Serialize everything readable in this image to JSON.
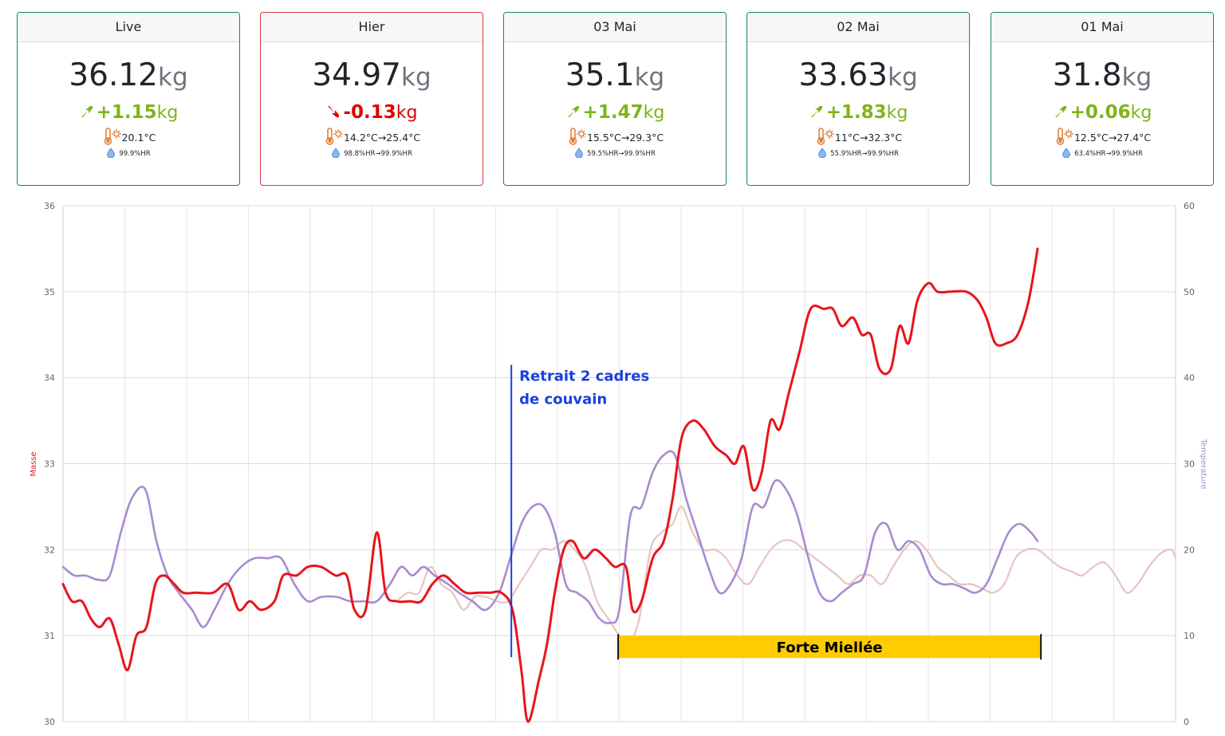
{
  "cards": [
    {
      "header": "Live",
      "weight": "36.12",
      "unit": "kg",
      "delta": "+1.15",
      "delta_unit": "kg",
      "direction": "up",
      "temp": "20.1°C",
      "hum": "99.9%HR",
      "style": "live"
    },
    {
      "header": "Hier",
      "weight": "34.97",
      "unit": "kg",
      "delta": "-0.13",
      "delta_unit": "kg",
      "direction": "down",
      "temp": "14.2°C→25.4°C",
      "hum": "98.8%HR→99.9%HR",
      "style": "neg"
    },
    {
      "header": "03 Mai",
      "weight": "35.1",
      "unit": "kg",
      "delta": "+1.47",
      "delta_unit": "kg",
      "direction": "up",
      "temp": "15.5°C→29.3°C",
      "hum": "59.5%HR→99.9%HR",
      "style": "pos"
    },
    {
      "header": "02 Mai",
      "weight": "33.63",
      "unit": "kg",
      "delta": "+1.83",
      "delta_unit": "kg",
      "direction": "up",
      "temp": "11°C→32.3°C",
      "hum": "55.9%HR→99.9%HR",
      "style": "pos"
    },
    {
      "header": "01 Mai",
      "weight": "31.8",
      "unit": "kg",
      "delta": "+0.06",
      "delta_unit": "kg",
      "direction": "up",
      "temp": "12.5°C→27.4°C",
      "hum": "63.4%HR→99.9%HR",
      "style": "pos"
    }
  ],
  "chart_data": {
    "type": "line",
    "ylabel": "Masse",
    "y2label": "Temperature",
    "ylim": [
      30,
      36
    ],
    "y2lim": [
      0,
      60
    ],
    "yticks": [
      30,
      31,
      32,
      33,
      34,
      35,
      36
    ],
    "y2ticks": [
      0,
      10,
      20,
      30,
      40,
      50,
      60
    ],
    "x_range": [
      0,
      1
    ],
    "grid": true,
    "colors": {
      "masse": "#e8141b",
      "temperature": "#a98bd0",
      "temperature_faint": "#e8c4bf",
      "event": "#1a3fdc",
      "miellee": "#ffcc00"
    },
    "series": [
      {
        "name": "Masse",
        "axis": "y",
        "color": "#e8141b",
        "points": [
          [
            0.0,
            31.6
          ],
          [
            0.008,
            31.4
          ],
          [
            0.017,
            31.4
          ],
          [
            0.025,
            31.2
          ],
          [
            0.033,
            31.1
          ],
          [
            0.042,
            31.2
          ],
          [
            0.05,
            30.9
          ],
          [
            0.058,
            30.6
          ],
          [
            0.066,
            31.0
          ],
          [
            0.075,
            31.1
          ],
          [
            0.083,
            31.6
          ],
          [
            0.091,
            31.7
          ],
          [
            0.1,
            31.6
          ],
          [
            0.108,
            31.5
          ],
          [
            0.12,
            31.5
          ],
          [
            0.135,
            31.5
          ],
          [
            0.148,
            31.6
          ],
          [
            0.158,
            31.3
          ],
          [
            0.168,
            31.4
          ],
          [
            0.178,
            31.3
          ],
          [
            0.19,
            31.4
          ],
          [
            0.198,
            31.7
          ],
          [
            0.21,
            31.7
          ],
          [
            0.22,
            31.8
          ],
          [
            0.232,
            31.8
          ],
          [
            0.245,
            31.7
          ],
          [
            0.255,
            31.7
          ],
          [
            0.262,
            31.3
          ],
          [
            0.272,
            31.3
          ],
          [
            0.282,
            32.2
          ],
          [
            0.29,
            31.5
          ],
          [
            0.3,
            31.4
          ],
          [
            0.312,
            31.4
          ],
          [
            0.322,
            31.4
          ],
          [
            0.332,
            31.6
          ],
          [
            0.342,
            31.7
          ],
          [
            0.352,
            31.6
          ],
          [
            0.362,
            31.5
          ],
          [
            0.374,
            31.5
          ],
          [
            0.384,
            31.5
          ],
          [
            0.394,
            31.5
          ],
          [
            0.404,
            31.3
          ],
          [
            0.412,
            30.6
          ],
          [
            0.418,
            30.0
          ],
          [
            0.428,
            30.5
          ],
          [
            0.435,
            30.9
          ],
          [
            0.442,
            31.5
          ],
          [
            0.45,
            32.0
          ],
          [
            0.458,
            32.1
          ],
          [
            0.468,
            31.9
          ],
          [
            0.478,
            32.0
          ],
          [
            0.488,
            31.9
          ],
          [
            0.496,
            31.8
          ],
          [
            0.506,
            31.8
          ],
          [
            0.512,
            31.3
          ],
          [
            0.52,
            31.4
          ],
          [
            0.53,
            31.9
          ],
          [
            0.54,
            32.1
          ],
          [
            0.548,
            32.6
          ],
          [
            0.556,
            33.3
          ],
          [
            0.566,
            33.5
          ],
          [
            0.576,
            33.4
          ],
          [
            0.586,
            33.2
          ],
          [
            0.596,
            33.1
          ],
          [
            0.604,
            33.0
          ],
          [
            0.612,
            33.2
          ],
          [
            0.62,
            32.7
          ],
          [
            0.628,
            32.9
          ],
          [
            0.636,
            33.5
          ],
          [
            0.644,
            33.4
          ],
          [
            0.652,
            33.8
          ],
          [
            0.662,
            34.3
          ],
          [
            0.672,
            34.8
          ],
          [
            0.684,
            34.8
          ],
          [
            0.692,
            34.8
          ],
          [
            0.7,
            34.6
          ],
          [
            0.71,
            34.7
          ],
          [
            0.718,
            34.5
          ],
          [
            0.726,
            34.5
          ],
          [
            0.734,
            34.1
          ],
          [
            0.744,
            34.1
          ],
          [
            0.752,
            34.6
          ],
          [
            0.76,
            34.4
          ],
          [
            0.768,
            34.9
          ],
          [
            0.778,
            35.1
          ],
          [
            0.786,
            35.0
          ],
          [
            0.798,
            35.0
          ],
          [
            0.812,
            35.0
          ],
          [
            0.822,
            34.9
          ],
          [
            0.83,
            34.7
          ],
          [
            0.838,
            34.4
          ],
          [
            0.848,
            34.4
          ],
          [
            0.858,
            34.5
          ],
          [
            0.868,
            34.9
          ],
          [
            0.876,
            35.5
          ]
        ]
      },
      {
        "name": "Temperature",
        "axis": "y2",
        "color": "#a98bd0",
        "points": [
          [
            0.0,
            18
          ],
          [
            0.01,
            17
          ],
          [
            0.02,
            17
          ],
          [
            0.032,
            16.5
          ],
          [
            0.042,
            17
          ],
          [
            0.052,
            22
          ],
          [
            0.062,
            26
          ],
          [
            0.074,
            27
          ],
          [
            0.084,
            21
          ],
          [
            0.094,
            17
          ],
          [
            0.104,
            15
          ],
          [
            0.116,
            13
          ],
          [
            0.126,
            11
          ],
          [
            0.136,
            13
          ],
          [
            0.148,
            16
          ],
          [
            0.16,
            18
          ],
          [
            0.172,
            19
          ],
          [
            0.184,
            19
          ],
          [
            0.196,
            19
          ],
          [
            0.208,
            16
          ],
          [
            0.22,
            14
          ],
          [
            0.232,
            14.5
          ],
          [
            0.246,
            14.5
          ],
          [
            0.258,
            14
          ],
          [
            0.27,
            14
          ],
          [
            0.282,
            14
          ],
          [
            0.294,
            16
          ],
          [
            0.304,
            18
          ],
          [
            0.314,
            17
          ],
          [
            0.324,
            18
          ],
          [
            0.334,
            17
          ],
          [
            0.346,
            16
          ],
          [
            0.356,
            15
          ],
          [
            0.368,
            14
          ],
          [
            0.38,
            13
          ],
          [
            0.392,
            15
          ],
          [
            0.402,
            19
          ],
          [
            0.412,
            23
          ],
          [
            0.422,
            25
          ],
          [
            0.432,
            25
          ],
          [
            0.442,
            22
          ],
          [
            0.452,
            16
          ],
          [
            0.462,
            15
          ],
          [
            0.472,
            14
          ],
          [
            0.482,
            12
          ],
          [
            0.492,
            11.5
          ],
          [
            0.5,
            13
          ],
          [
            0.51,
            24
          ],
          [
            0.52,
            25
          ],
          [
            0.53,
            29
          ],
          [
            0.54,
            31
          ],
          [
            0.55,
            31
          ],
          [
            0.56,
            26
          ],
          [
            0.57,
            22
          ],
          [
            0.58,
            18
          ],
          [
            0.59,
            15
          ],
          [
            0.6,
            16
          ],
          [
            0.61,
            19
          ],
          [
            0.62,
            25
          ],
          [
            0.63,
            25
          ],
          [
            0.64,
            28
          ],
          [
            0.65,
            27
          ],
          [
            0.66,
            24
          ],
          [
            0.67,
            19
          ],
          [
            0.68,
            15
          ],
          [
            0.69,
            14
          ],
          [
            0.7,
            15
          ],
          [
            0.71,
            16
          ],
          [
            0.72,
            17
          ],
          [
            0.73,
            22
          ],
          [
            0.74,
            23
          ],
          [
            0.75,
            20
          ],
          [
            0.76,
            21
          ],
          [
            0.77,
            20
          ],
          [
            0.78,
            17
          ],
          [
            0.79,
            16
          ],
          [
            0.8,
            16
          ],
          [
            0.81,
            15.5
          ],
          [
            0.82,
            15
          ],
          [
            0.83,
            16
          ],
          [
            0.84,
            19
          ],
          [
            0.85,
            22
          ],
          [
            0.86,
            23
          ],
          [
            0.87,
            22
          ],
          [
            0.876,
            21
          ]
        ]
      },
      {
        "name": "Temperature (faint)",
        "axis": "y2",
        "color": "#e8c4bf",
        "points": [
          [
            0.3,
            14
          ],
          [
            0.31,
            15
          ],
          [
            0.32,
            15
          ],
          [
            0.33,
            18
          ],
          [
            0.34,
            16
          ],
          [
            0.35,
            15
          ],
          [
            0.36,
            13
          ],
          [
            0.37,
            14.5
          ],
          [
            0.38,
            14.5
          ],
          [
            0.39,
            14
          ],
          [
            0.4,
            14
          ],
          [
            0.41,
            16
          ],
          [
            0.42,
            18
          ],
          [
            0.43,
            20
          ],
          [
            0.44,
            20
          ],
          [
            0.45,
            21
          ],
          [
            0.46,
            20
          ],
          [
            0.47,
            18
          ],
          [
            0.48,
            14
          ],
          [
            0.49,
            12
          ],
          [
            0.5,
            10
          ],
          [
            0.508,
            9
          ],
          [
            0.518,
            12
          ],
          [
            0.528,
            20
          ],
          [
            0.538,
            22
          ],
          [
            0.548,
            23
          ],
          [
            0.556,
            25
          ],
          [
            0.566,
            22
          ],
          [
            0.576,
            20
          ],
          [
            0.586,
            20
          ],
          [
            0.596,
            19
          ],
          [
            0.606,
            17
          ],
          [
            0.616,
            16
          ],
          [
            0.626,
            18
          ],
          [
            0.636,
            20
          ],
          [
            0.646,
            21
          ],
          [
            0.656,
            21
          ],
          [
            0.666,
            20
          ],
          [
            0.676,
            19
          ],
          [
            0.686,
            18
          ],
          [
            0.696,
            17
          ],
          [
            0.706,
            16
          ],
          [
            0.716,
            17
          ],
          [
            0.726,
            17
          ],
          [
            0.736,
            16
          ],
          [
            0.746,
            18
          ],
          [
            0.756,
            20
          ],
          [
            0.766,
            21
          ],
          [
            0.776,
            20
          ],
          [
            0.786,
            18
          ],
          [
            0.796,
            17
          ],
          [
            0.806,
            16
          ],
          [
            0.816,
            16
          ],
          [
            0.826,
            15.5
          ],
          [
            0.836,
            15
          ],
          [
            0.846,
            16
          ],
          [
            0.856,
            19
          ],
          [
            0.866,
            20
          ],
          [
            0.876,
            20
          ],
          [
            0.886,
            19
          ],
          [
            0.896,
            18
          ],
          [
            0.906,
            17.5
          ],
          [
            0.916,
            17
          ],
          [
            0.926,
            18
          ],
          [
            0.936,
            18.5
          ],
          [
            0.946,
            17
          ],
          [
            0.956,
            15
          ],
          [
            0.966,
            16
          ],
          [
            0.976,
            18
          ],
          [
            0.986,
            19.5
          ],
          [
            0.996,
            20
          ],
          [
            1.006,
            17
          ],
          [
            1.016,
            18
          ],
          [
            1.0,
            19
          ]
        ]
      }
    ],
    "annotations": [
      {
        "kind": "vline",
        "x": 0.403,
        "y_from": 30.75,
        "y_to": 34.15,
        "label": "Retrait 2 cadres\nde couvain"
      },
      {
        "kind": "range",
        "x_from": 0.499,
        "x_to": 0.879,
        "y_center": 30.87,
        "label": "Forte Miellée"
      }
    ]
  }
}
